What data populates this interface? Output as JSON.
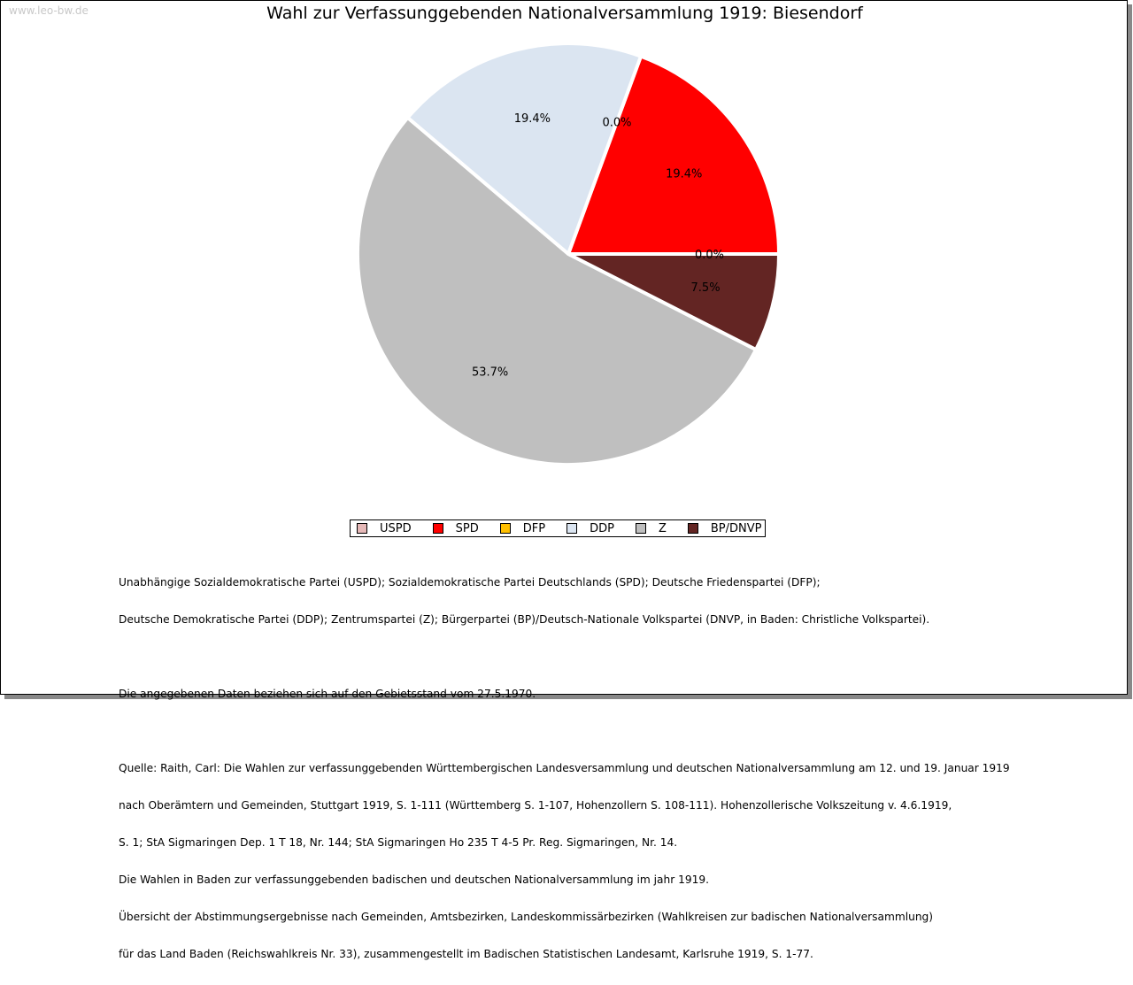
{
  "watermark": "www.leo-bw.de",
  "chart_data": {
    "type": "pie",
    "title": "Wahl zur Verfassunggebenden Nationalversammlung 1919: Biesendorf",
    "categories": [
      "USPD",
      "SPD",
      "DFP",
      "DDP",
      "Z",
      "BP/DNVP"
    ],
    "values": [
      0.0,
      19.4,
      0.0,
      19.4,
      53.7,
      7.5
    ],
    "labels": [
      "0.0%",
      "19.4%",
      "0.0%",
      "19.4%",
      "53.7%",
      "7.5%"
    ],
    "colors": [
      "#e6b9b8",
      "#ff0000",
      "#ffc000",
      "#dbe5f1",
      "#bfbfbf",
      "#632523"
    ],
    "start": "3 o'clock, counterclockwise",
    "legend": "bottom"
  },
  "notes": {
    "parties_1": "Unabhängige Sozialdemokratische Partei (USPD); Sozialdemokratische Partei Deutschlands (SPD); Deutsche Friedenspartei (DFP);",
    "parties_2": "Deutsche Demokratische Partei (DDP); Zentrumspartei (Z); Bürgerpartei (BP)/Deutsch-Nationale Volkspartei (DNVP, in Baden: Christliche Volkspartei).",
    "territory": "Die angegebenen Daten beziehen sich auf den Gebietsstand vom 27.5.1970.",
    "source_1": "Quelle: Raith, Carl: Die Wahlen zur verfassunggebenden Württembergischen Landesversammlung und deutschen Nationalversammlung am 12. und 19. Januar 1919",
    "source_2": "nach Oberämtern und Gemeinden, Stuttgart 1919, S. 1-111 (Württemberg S. 1-107, Hohenzollern S. 108-111). Hohenzollerische Volkszeitung v. 4.6.1919,",
    "source_3": "S. 1; StA Sigmaringen Dep. 1 T 18, Nr. 144; StA Sigmaringen Ho 235 T 4-5 Pr. Reg. Sigmaringen, Nr. 14.",
    "source_4": "Die Wahlen in Baden zur verfassunggebenden badischen und deutschen Nationalversammlung im jahr 1919.",
    "source_5": "Übersicht der Abstimmungsergebnisse nach Gemeinden, Amtsbezirken, Landeskommissärbezirken (Wahlkreisen zur badischen Nationalversammlung)",
    "source_6": "für das Land Baden (Reichswahlkreis Nr. 33), zusammengestellt im Badischen Statistischen Landesamt, Karlsruhe 1919, S. 1-77."
  }
}
